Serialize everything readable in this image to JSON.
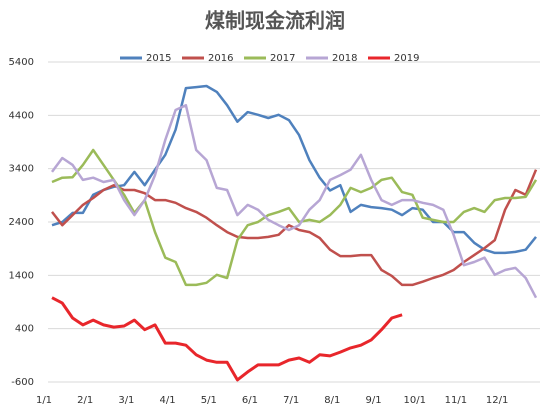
{
  "chart_data": {
    "type": "line",
    "title": "煤制现金流利润",
    "categories": [
      "1/1",
      null,
      null,
      null,
      "2/1",
      null,
      null,
      null,
      "3/1",
      null,
      null,
      null,
      "4/1",
      null,
      null,
      null,
      "5/1",
      null,
      null,
      null,
      "6/1",
      null,
      null,
      null,
      "7/1",
      null,
      null,
      null,
      "8/1",
      null,
      null,
      null,
      "9/1",
      null,
      null,
      null,
      "10/1",
      null,
      null,
      null,
      "11/1",
      null,
      null,
      null,
      "12/1",
      null,
      null,
      null
    ],
    "series": [
      {
        "name": "2015",
        "color": "#4f81bd",
        "values": [
          2340,
          2400,
          2570,
          2570,
          2910,
          3000,
          3060,
          3090,
          3340,
          3090,
          3380,
          3660,
          4130,
          4910,
          4930,
          4950,
          4840,
          4590,
          4280,
          4460,
          4410,
          4350,
          4410,
          4310,
          4030,
          3560,
          3230,
          2990,
          3090,
          2590,
          2720,
          2680,
          2660,
          2630,
          2530,
          2660,
          2630,
          2400,
          2400,
          2210,
          2210,
          2010,
          1880,
          1820,
          1820,
          1840,
          1880,
          2120
        ]
      },
      {
        "name": "2016",
        "color": "#c0504d",
        "values": [
          2590,
          2340,
          2530,
          2720,
          2850,
          3000,
          3090,
          3000,
          3000,
          2940,
          2810,
          2810,
          2760,
          2660,
          2590,
          2480,
          2340,
          2210,
          2120,
          2100,
          2100,
          2120,
          2160,
          2340,
          2250,
          2210,
          2100,
          1880,
          1760,
          1760,
          1780,
          1780,
          1500,
          1390,
          1220,
          1220,
          1280,
          1350,
          1410,
          1500,
          1650,
          1780,
          1910,
          2060,
          2630,
          3000,
          2910,
          3380
        ]
      },
      {
        "name": "2017",
        "color": "#9bbb59",
        "values": [
          3150,
          3230,
          3240,
          3470,
          3750,
          3470,
          3190,
          2910,
          2570,
          2810,
          2210,
          1730,
          1650,
          1220,
          1220,
          1260,
          1410,
          1350,
          2060,
          2340,
          2400,
          2530,
          2590,
          2660,
          2400,
          2440,
          2400,
          2530,
          2720,
          3040,
          2960,
          3040,
          3190,
          3230,
          2960,
          2910,
          2480,
          2440,
          2400,
          2400,
          2590,
          2660,
          2590,
          2810,
          2850,
          2850,
          2870,
          3190
        ]
      },
      {
        "name": "2018",
        "color": "#b7a6d4",
        "values": [
          3340,
          3600,
          3470,
          3190,
          3230,
          3150,
          3190,
          2810,
          2530,
          2810,
          3280,
          3940,
          4500,
          4590,
          3750,
          3560,
          3040,
          3000,
          2530,
          2720,
          2630,
          2440,
          2340,
          2250,
          2340,
          2630,
          2810,
          3190,
          3280,
          3380,
          3660,
          3190,
          2810,
          2720,
          2810,
          2810,
          2760,
          2720,
          2630,
          2160,
          1590,
          1650,
          1730,
          1410,
          1500,
          1540,
          1350,
          980
        ]
      },
      {
        "name": "2019",
        "color": "#e8262b",
        "values": [
          980,
          880,
          600,
          470,
          560,
          470,
          430,
          450,
          560,
          380,
          470,
          130,
          130,
          90,
          -90,
          -190,
          -230,
          -230,
          -560,
          -410,
          -280,
          -280,
          -280,
          -190,
          -150,
          -230,
          -90,
          -110,
          -40,
          40,
          90,
          190,
          380,
          600,
          660,
          null,
          null,
          null,
          null,
          null,
          null,
          null,
          null,
          null,
          null,
          null,
          null,
          null
        ]
      }
    ],
    "ylim": [
      -600,
      5400
    ],
    "yticks": [
      -600,
      400,
      1400,
      2400,
      3400,
      4400,
      5400
    ],
    "grid": true,
    "legend": "top"
  }
}
